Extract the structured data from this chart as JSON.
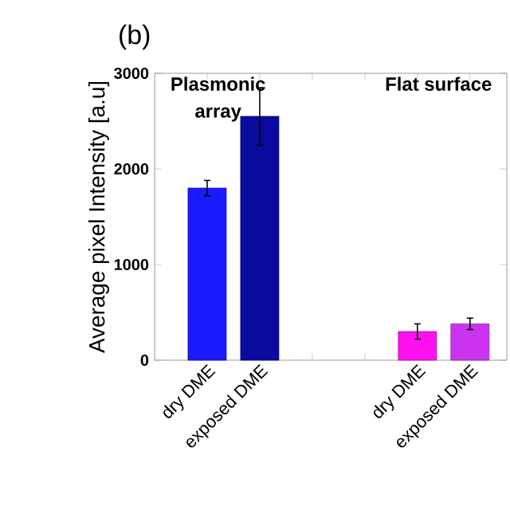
{
  "chart_data": {
    "type": "bar",
    "title": "(b)",
    "ylabel": "Average pixel Intensity [a.u]",
    "categories": [
      "dry DME",
      "exposed DME",
      null,
      null,
      "dry DME",
      "exposed DME"
    ],
    "values": [
      1800,
      2550,
      null,
      null,
      300,
      380
    ],
    "errors": [
      80,
      300,
      null,
      null,
      80,
      60
    ],
    "colors": [
      "#1a1aff",
      "#0a0a9e",
      null,
      null,
      "#ff10ee",
      "#cc33ee"
    ],
    "ylim": [
      0,
      3000
    ],
    "yticks": [
      0,
      1000,
      2000,
      3000
    ],
    "annotations": [
      "Plasmonic array",
      "Flat surface"
    ]
  }
}
